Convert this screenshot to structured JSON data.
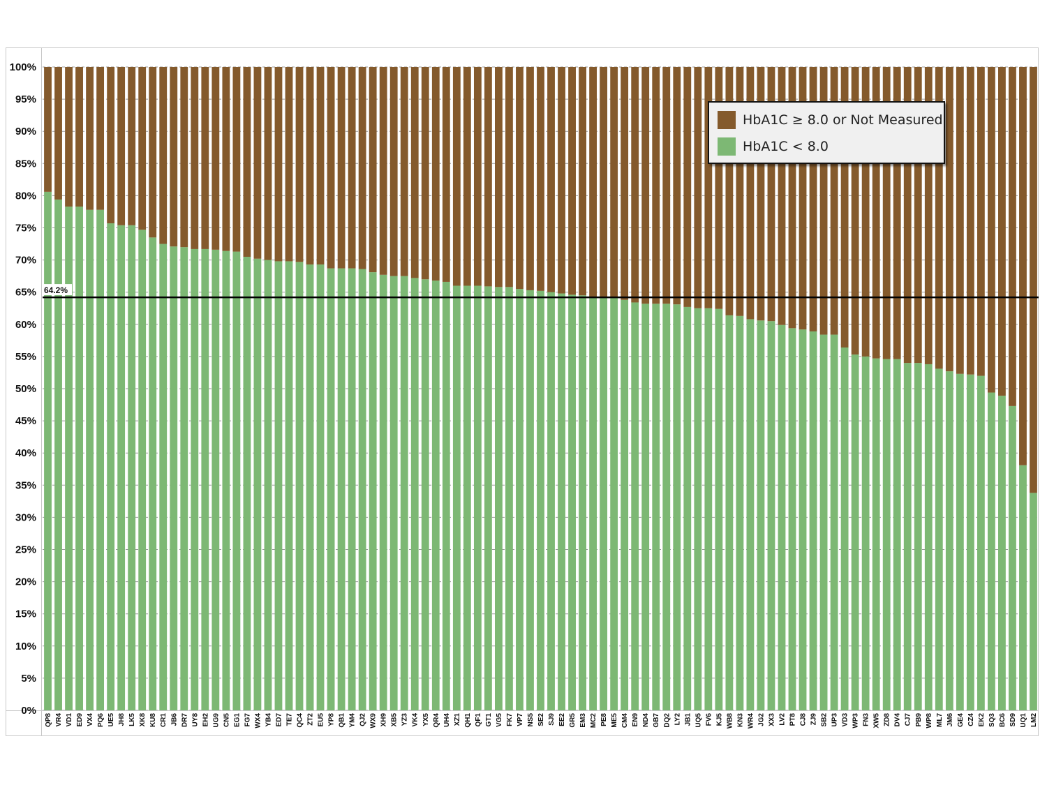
{
  "chart_data": {
    "type": "bar",
    "stacked": true,
    "ylim": [
      0,
      100
    ],
    "y_ticks": [
      "0%",
      "5%",
      "10%",
      "15%",
      "20%",
      "25%",
      "30%",
      "35%",
      "40%",
      "45%",
      "50%",
      "55%",
      "60%",
      "65%",
      "70%",
      "75%",
      "80%",
      "85%",
      "90%",
      "95%",
      "100%"
    ],
    "grid": true,
    "legend_position": "top-right",
    "categories": [
      "QP8",
      "VR4",
      "VD1",
      "ED9",
      "VX4",
      "PQ6",
      "UE5",
      "JH8",
      "LK5",
      "XK8",
      "KU8",
      "CR1",
      "JB6",
      "DR7",
      "UY8",
      "EH2",
      "UG9",
      "CN5",
      "EG1",
      "FG7",
      "WX4",
      "YB4",
      "ED7",
      "TE7",
      "QC4",
      "ZT2",
      "EU5",
      "YP8",
      "QB1",
      "YM4",
      "QJ2",
      "WX9",
      "XH9",
      "XB5",
      "YZ3",
      "VK4",
      "YX5",
      "QR4",
      "UH4",
      "XZ1",
      "QH1",
      "QF1",
      "GT1",
      "VG5",
      "FK7",
      "VP7",
      "NS5",
      "SE2",
      "SJ9",
      "EE2",
      "GR5",
      "EM3",
      "MC2",
      "PE8",
      "ME5",
      "CM4",
      "EN9",
      "ND4",
      "GB7",
      "DQ2",
      "LY2",
      "JB1",
      "UQ5",
      "FV6",
      "KJ5",
      "WB8",
      "KN3",
      "WR4",
      "JG2",
      "XX3",
      "LV2",
      "PT8",
      "CJ8",
      "ZJ9",
      "SB2",
      "UP3",
      "VD3",
      "WP3",
      "FN3",
      "XW5",
      "ZD8",
      "DV4",
      "CJ7",
      "PB9",
      "WP8",
      "ML7",
      "JM6",
      "GE4",
      "CZ4",
      "EK2",
      "SQ3",
      "BC6",
      "SD9",
      "UQ1",
      "LM2"
    ],
    "series": [
      {
        "name": "HbA1C < 8.0",
        "color": "#7db874",
        "values": [
          80.6,
          79.4,
          78.3,
          78.3,
          77.8,
          77.8,
          75.7,
          75.4,
          75.4,
          74.7,
          73.5,
          72.5,
          72.1,
          72.0,
          71.7,
          71.7,
          71.6,
          71.4,
          71.3,
          70.5,
          70.2,
          70.0,
          69.8,
          69.8,
          69.7,
          69.3,
          69.3,
          68.7,
          68.7,
          68.7,
          68.6,
          68.1,
          67.7,
          67.5,
          67.5,
          67.2,
          67.0,
          66.8,
          66.6,
          66.0,
          66.0,
          66.0,
          65.9,
          65.8,
          65.8,
          65.5,
          65.3,
          65.2,
          65.0,
          64.8,
          64.6,
          64.5,
          64.2,
          64.1,
          64.1,
          63.8,
          63.4,
          63.2,
          63.2,
          63.2,
          63.1,
          62.7,
          62.5,
          62.5,
          62.4,
          61.4,
          61.3,
          60.8,
          60.6,
          60.5,
          59.9,
          59.4,
          59.2,
          58.9,
          58.4,
          58.4,
          56.4,
          55.3,
          55.0,
          54.7,
          54.6,
          54.6,
          54.0,
          54.0,
          53.8,
          53.1,
          52.7,
          52.3,
          52.2,
          52.0,
          49.4,
          48.9,
          47.3,
          38.1,
          33.8
        ]
      },
      {
        "name": "HbA1C ≥ 8.0 or Not Measured",
        "color": "#845a2c",
        "values": [
          19.4,
          20.6,
          21.7,
          21.7,
          22.2,
          22.2,
          24.3,
          24.6,
          24.6,
          25.3,
          26.5,
          27.5,
          27.9,
          28.0,
          28.3,
          28.3,
          28.4,
          28.6,
          28.7,
          29.5,
          29.8,
          30.0,
          30.2,
          30.2,
          30.3,
          30.7,
          30.7,
          31.3,
          31.3,
          31.3,
          31.4,
          31.9,
          32.3,
          32.5,
          32.5,
          32.8,
          33.0,
          33.2,
          33.4,
          34.0,
          34.0,
          34.0,
          34.1,
          34.2,
          34.2,
          34.5,
          34.7,
          34.8,
          35.0,
          35.2,
          35.4,
          35.5,
          35.8,
          35.9,
          35.9,
          36.2,
          36.6,
          36.8,
          36.8,
          36.8,
          36.9,
          37.3,
          37.5,
          37.5,
          37.6,
          38.6,
          38.7,
          39.2,
          39.4,
          39.5,
          40.1,
          40.6,
          40.8,
          41.1,
          41.6,
          41.6,
          43.6,
          44.7,
          45.0,
          45.3,
          45.4,
          45.4,
          46.0,
          46.0,
          46.2,
          46.9,
          47.3,
          47.7,
          47.8,
          48.0,
          50.6,
          51.1,
          52.7,
          61.9,
          66.2
        ]
      }
    ],
    "reference_line": {
      "value": 64.2,
      "label": "64.2%"
    }
  }
}
